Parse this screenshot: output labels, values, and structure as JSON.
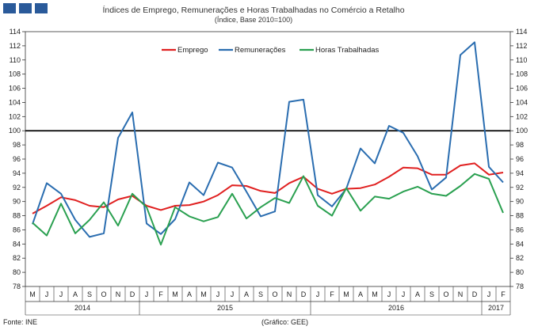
{
  "header": {
    "title": "Índices de Emprego, Remunerações e Horas Trabalhadas no Comércio a Retalho",
    "subtitle": "(Índice, Base 2010=100)",
    "logo_color": "#2a5a9a"
  },
  "footer": {
    "source": "Fonte: INE",
    "credit": "(Gráfico: GEE)"
  },
  "chart_data": {
    "type": "line",
    "title": "Índices de Emprego, Remunerações e Horas Trabalhadas no Comércio a Retalho",
    "subtitle": "(Índice, Base 2010=100)",
    "ylim": [
      78,
      114
    ],
    "ytick_step": 2,
    "yticks": [
      "78",
      "80",
      "82",
      "84",
      "86",
      "88",
      "90",
      "92",
      "94",
      "96",
      "98",
      "100",
      "102",
      "104",
      "106",
      "108",
      "110",
      "112",
      "114"
    ],
    "reference_line": 100,
    "legend_position": "top-center",
    "months": [
      "M",
      "J",
      "J",
      "A",
      "S",
      "O",
      "N",
      "D",
      "J",
      "F",
      "M",
      "A",
      "M",
      "J",
      "J",
      "A",
      "S",
      "O",
      "N",
      "D",
      "J",
      "F",
      "M",
      "A",
      "M",
      "J",
      "J",
      "A",
      "S",
      "O",
      "N",
      "D",
      "J",
      "F"
    ],
    "years": [
      {
        "label": "2014",
        "start": 0,
        "end": 7
      },
      {
        "label": "2015",
        "start": 8,
        "end": 19
      },
      {
        "label": "2016",
        "start": 20,
        "end": 31
      },
      {
        "label": "2017",
        "start": 32,
        "end": 33
      }
    ],
    "series": [
      {
        "name": "Emprego",
        "color": "#e02020",
        "values": [
          88.3,
          89.4,
          90.6,
          90.2,
          89.4,
          89.2,
          90.3,
          90.8,
          89.4,
          88.8,
          89.4,
          89.5,
          90.0,
          90.9,
          92.3,
          92.2,
          91.5,
          91.2,
          92.6,
          93.5,
          91.8,
          91.1,
          91.8,
          91.9,
          92.4,
          93.5,
          94.8,
          94.7,
          93.8,
          93.8,
          95.1,
          95.4,
          93.8,
          94.1
        ]
      },
      {
        "name": "Remunerações",
        "color": "#2a6db0",
        "values": [
          86.8,
          92.6,
          91.1,
          87.4,
          85.0,
          85.5,
          99.0,
          102.6,
          86.9,
          85.4,
          87.5,
          92.7,
          90.9,
          95.5,
          94.8,
          91.4,
          87.9,
          88.6,
          104.1,
          104.4,
          90.9,
          89.3,
          91.8,
          97.5,
          95.4,
          100.7,
          99.7,
          96.4,
          91.7,
          93.4,
          110.7,
          112.5,
          94.9,
          92.7
        ]
      },
      {
        "name": "Horas Trabalhadas",
        "color": "#2aa050",
        "values": [
          87.0,
          85.2,
          89.7,
          85.5,
          87.4,
          89.9,
          86.6,
          91.1,
          89.2,
          83.9,
          89.2,
          87.9,
          87.2,
          87.8,
          91.1,
          87.6,
          89.2,
          90.5,
          89.8,
          93.6,
          89.4,
          88.0,
          91.9,
          88.7,
          90.7,
          90.4,
          91.4,
          92.1,
          91.1,
          90.8,
          92.2,
          93.9,
          93.2,
          88.4
        ]
      }
    ]
  }
}
